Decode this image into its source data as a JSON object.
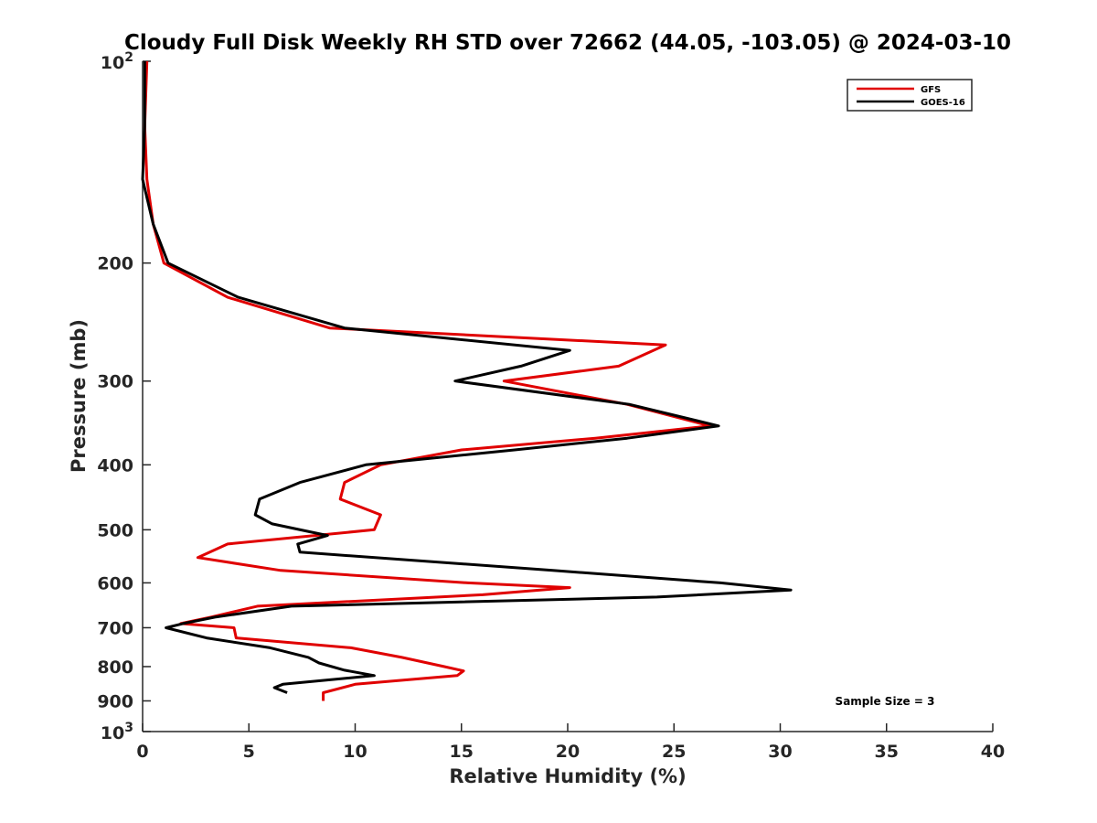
{
  "chart_data": {
    "type": "line",
    "title": "Cloudy Full Disk Weekly RH STD over 72662 (44.05, -103.05) @ 2024-03-10",
    "xlabel": "Relative Humidity (%)",
    "ylabel": "Pressure (mb)",
    "xlim": [
      0,
      40
    ],
    "ylim": [
      100,
      1000
    ],
    "yscale": "log",
    "y_reversed": true,
    "xticks": [
      0,
      5,
      10,
      15,
      20,
      25,
      30,
      35,
      40
    ],
    "xtick_labels": [
      "0",
      "5",
      "10",
      "15",
      "20",
      "25",
      "30",
      "35",
      "40"
    ],
    "yticks": [
      200,
      300,
      400,
      500,
      600,
      700,
      800,
      900
    ],
    "ytick_labels": [
      "200",
      "300",
      "400",
      "500",
      "600",
      "700",
      "800",
      "900"
    ],
    "ytick_ends": [
      {
        "value": 100,
        "base": "10",
        "exp": "2"
      },
      {
        "value": 1000,
        "base": "10",
        "exp": "3"
      }
    ],
    "grid": false,
    "legend_position": "top-right",
    "annotation": "Sample Size = 3",
    "series": [
      {
        "name": "GFS",
        "color": "#e00000",
        "points": [
          [
            0.2,
            100
          ],
          [
            0.1,
            125
          ],
          [
            0.2,
            150
          ],
          [
            0.5,
            175
          ],
          [
            1.0,
            200
          ],
          [
            4.0,
            225
          ],
          [
            8.8,
            250
          ],
          [
            24.6,
            265
          ],
          [
            22.4,
            285
          ],
          [
            17.0,
            300
          ],
          [
            22.8,
            325
          ],
          [
            26.7,
            350
          ],
          [
            21.3,
            365
          ],
          [
            15.0,
            380
          ],
          [
            11.2,
            400
          ],
          [
            9.5,
            425
          ],
          [
            9.3,
            450
          ],
          [
            11.2,
            475
          ],
          [
            10.9,
            500
          ],
          [
            4.0,
            525
          ],
          [
            2.6,
            550
          ],
          [
            6.5,
            575
          ],
          [
            15.3,
            600
          ],
          [
            20.1,
            610
          ],
          [
            16.0,
            625
          ],
          [
            5.4,
            650
          ],
          [
            3.2,
            675
          ],
          [
            1.8,
            690
          ],
          [
            4.3,
            700
          ],
          [
            4.4,
            725
          ],
          [
            9.8,
            750
          ],
          [
            12.2,
            775
          ],
          [
            14.2,
            800
          ],
          [
            15.1,
            812
          ],
          [
            14.8,
            825
          ],
          [
            10.0,
            850
          ],
          [
            8.5,
            875
          ],
          [
            8.5,
            900
          ]
        ]
      },
      {
        "name": "GOES-16",
        "color": "#000000",
        "points": [
          [
            0.1,
            100
          ],
          [
            0.1,
            125
          ],
          [
            0.0,
            150
          ],
          [
            0.5,
            175
          ],
          [
            1.2,
            200
          ],
          [
            4.5,
            225
          ],
          [
            9.5,
            250
          ],
          [
            20.1,
            270
          ],
          [
            17.8,
            285
          ],
          [
            14.7,
            300
          ],
          [
            22.9,
            325
          ],
          [
            27.1,
            350
          ],
          [
            22.8,
            365
          ],
          [
            17.5,
            380
          ],
          [
            10.5,
            400
          ],
          [
            7.4,
            425
          ],
          [
            5.5,
            450
          ],
          [
            5.3,
            475
          ],
          [
            6.1,
            490
          ],
          [
            8.7,
            510
          ],
          [
            7.3,
            525
          ],
          [
            7.4,
            540
          ],
          [
            19.3,
            575
          ],
          [
            27.2,
            600
          ],
          [
            30.5,
            615
          ],
          [
            24.2,
            630
          ],
          [
            7.0,
            650
          ],
          [
            3.4,
            675
          ],
          [
            1.9,
            690
          ],
          [
            1.1,
            700
          ],
          [
            3.0,
            725
          ],
          [
            6.0,
            750
          ],
          [
            7.8,
            775
          ],
          [
            8.3,
            790
          ],
          [
            9.5,
            810
          ],
          [
            10.9,
            825
          ],
          [
            6.6,
            850
          ],
          [
            6.2,
            860
          ],
          [
            6.8,
            875
          ]
        ]
      }
    ]
  }
}
